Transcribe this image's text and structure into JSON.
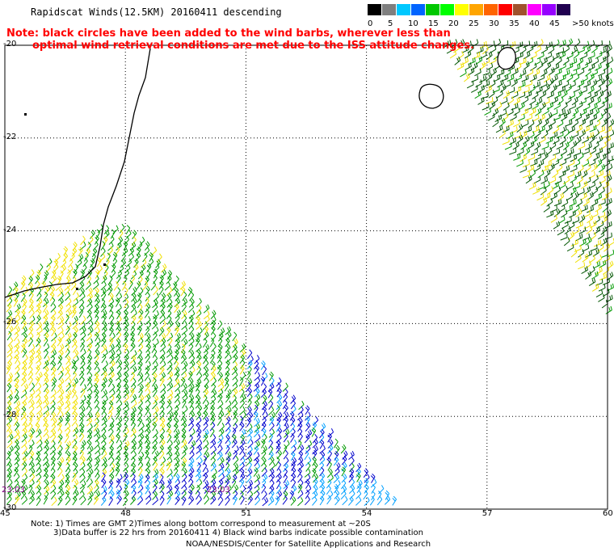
{
  "title": "Rapidscat Winds(12.5KM) 20160411 descending",
  "note": {
    "line1": "Note: black circles have been added to the wind barbs, wherever less than",
    "line2": "optimal wind retrieval conditions are met due to the ISS attitude changes."
  },
  "legend": {
    "unit": ">50 knots",
    "labels": [
      "0",
      "5",
      "10",
      "15",
      "20",
      "25",
      "30",
      "35",
      "40",
      "45"
    ],
    "colors": [
      "#000000",
      "#7f7f7f",
      "#00c8ff",
      "#0064ff",
      "#00c800",
      "#00ff00",
      "#ffff00",
      "#ffa500",
      "#ff6400",
      "#ff0000",
      "#a0522d",
      "#ff00ff",
      "#9600ff",
      "#200050"
    ]
  },
  "map": {
    "lat_labels": [
      "-20",
      "-22",
      "-24",
      "-26",
      "-28",
      "-30"
    ],
    "lon_labels": [
      "45",
      "48",
      "51",
      "54",
      "57",
      "60"
    ],
    "lat_range": [
      -30,
      -20
    ],
    "lon_range": [
      45,
      60
    ],
    "times": [
      "23:03",
      "23:03"
    ],
    "barb_colors": {
      "calm": "#f0e000",
      "moderate": "#009900",
      "fresh": "#0000cc",
      "strong": "#00a0ff",
      "dark": "#005500"
    }
  },
  "footer": {
    "line1": "Note: 1) Times are GMT 2)Times along bottom correspond to measurement at ~20S",
    "line2": "3)Data buffer is 22 hrs from 20160411 4) Black wind barbs indicate possible contamination",
    "credit": "NOAA/NESDIS/Center for Satellite Applications and Research"
  }
}
